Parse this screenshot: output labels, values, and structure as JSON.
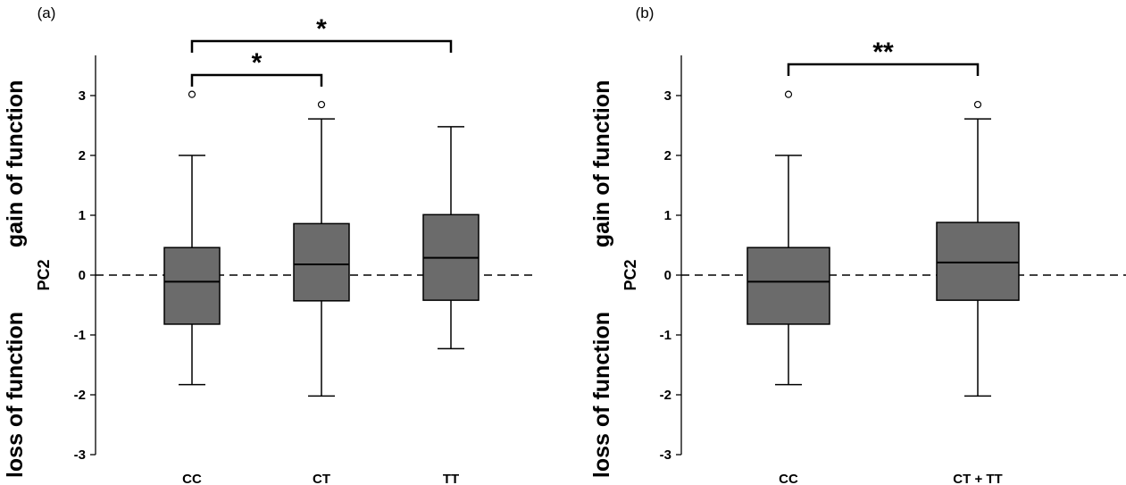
{
  "chart_data": [
    {
      "type": "box",
      "panel_label": "(a)",
      "ylabel": "PC2",
      "side_labels": {
        "upper": "gain of function",
        "lower": "loss of function"
      },
      "ylim": [
        -3,
        3.7
      ],
      "yticks": [
        -3,
        -2,
        -1,
        0,
        1,
        2,
        3
      ],
      "reference_line": 0,
      "categories": [
        "CC",
        "CT",
        "TT"
      ],
      "boxes": [
        {
          "category": "CC",
          "whisker_low": -1.83,
          "q1": -0.82,
          "median": -0.11,
          "q3": 0.46,
          "whisker_high": 2.0,
          "outliers": [
            3.02
          ]
        },
        {
          "category": "CT",
          "whisker_low": -2.02,
          "q1": -0.43,
          "median": 0.18,
          "q3": 0.86,
          "whisker_high": 2.61,
          "outliers": [
            2.85
          ]
        },
        {
          "category": "TT",
          "whisker_low": -1.23,
          "q1": -0.42,
          "median": 0.29,
          "q3": 1.01,
          "whisker_high": 2.48,
          "outliers": []
        }
      ],
      "significance": [
        {
          "from": "CC",
          "to": "CT",
          "label": "*"
        },
        {
          "from": "CC",
          "to": "TT",
          "label": "*"
        }
      ],
      "box_color": "#6b6b6b"
    },
    {
      "type": "box",
      "panel_label": "(b)",
      "ylabel": "PC2",
      "side_labels": {
        "upper": "gain of function",
        "lower": "loss of function"
      },
      "ylim": [
        -3,
        3.7
      ],
      "yticks": [
        -3,
        -2,
        -1,
        0,
        1,
        2,
        3
      ],
      "reference_line": 0,
      "categories": [
        "CC",
        "CT + TT"
      ],
      "boxes": [
        {
          "category": "CC",
          "whisker_low": -1.83,
          "q1": -0.82,
          "median": -0.11,
          "q3": 0.46,
          "whisker_high": 2.0,
          "outliers": [
            3.02
          ]
        },
        {
          "category": "CT + TT",
          "whisker_low": -2.02,
          "q1": -0.42,
          "median": 0.21,
          "q3": 0.88,
          "whisker_high": 2.61,
          "outliers": [
            2.85
          ]
        }
      ],
      "significance": [
        {
          "from": "CC",
          "to": "CT + TT",
          "label": "**"
        }
      ],
      "box_color": "#6b6b6b"
    }
  ]
}
